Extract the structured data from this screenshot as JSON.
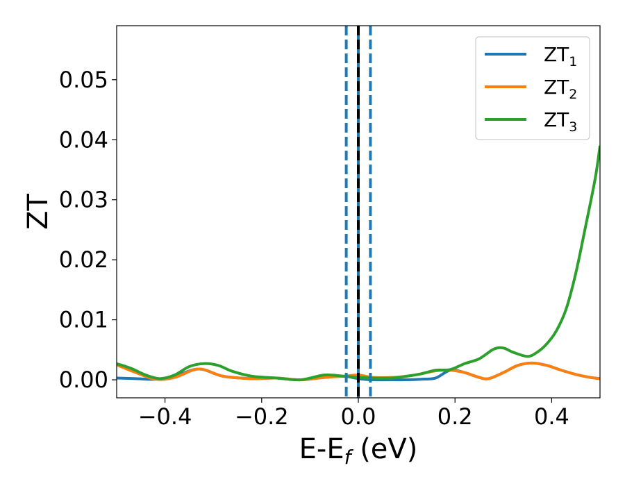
{
  "chart_data": {
    "type": "line",
    "xlabel": "E-E",
    "xlabel_sub": "f",
    "xlabel_unit": "(eV)",
    "ylabel": "ZT",
    "xlim": [
      -0.5,
      0.5
    ],
    "ylim": [
      -0.003,
      0.059
    ],
    "x_ticks": [
      -0.4,
      -0.2,
      0.0,
      0.2,
      0.4
    ],
    "x_tick_labels": [
      "−0.4",
      "−0.2",
      "0.0",
      "0.2",
      "0.4"
    ],
    "y_ticks": [
      0.0,
      0.01,
      0.02,
      0.03,
      0.04,
      0.05
    ],
    "y_tick_labels": [
      "0.00",
      "0.01",
      "0.02",
      "0.03",
      "0.04",
      "0.05"
    ],
    "grid": false,
    "legend_position": "top-right",
    "vlines": [
      {
        "x": -0.025,
        "style": "dashed",
        "color": "#1f77b4"
      },
      {
        "x": 0.025,
        "style": "dashed",
        "color": "#1f77b4"
      },
      {
        "x": 0.0,
        "style": "solid",
        "color": "#1f77b4"
      },
      {
        "x": 0.0,
        "style": "dashed",
        "color": "#000000"
      }
    ],
    "series": [
      {
        "name": "ZT",
        "name_sub": "1",
        "color": "#1f77b4",
        "x": [
          -0.5,
          -0.46,
          -0.42,
          -0.38,
          -0.33,
          -0.28,
          -0.22,
          -0.17,
          -0.12,
          -0.07,
          -0.03,
          0.0,
          0.03,
          0.07,
          0.1,
          0.13,
          0.16,
          0.19,
          0.22,
          0.25,
          0.27,
          0.3,
          0.33,
          0.36,
          0.39,
          0.42,
          0.45,
          0.48,
          0.5
        ],
        "y": [
          0.0003,
          0.0002,
          0.0001,
          0.0006,
          0.0018,
          0.0006,
          0.0002,
          0.0003,
          0.0,
          0.0004,
          0.0006,
          0.0002,
          0.0,
          0.0,
          0.0,
          0.0001,
          0.0003,
          0.0016,
          0.0012,
          0.0004,
          0.0002,
          0.0012,
          0.0024,
          0.0028,
          0.0024,
          0.0016,
          0.0009,
          0.0004,
          0.0002
        ]
      },
      {
        "name": "ZT",
        "name_sub": "2",
        "color": "#ff7f0e",
        "x": [
          -0.5,
          -0.46,
          -0.42,
          -0.38,
          -0.33,
          -0.28,
          -0.22,
          -0.17,
          -0.12,
          -0.07,
          -0.03,
          0.0,
          0.03,
          0.07,
          0.1,
          0.13,
          0.16,
          0.19,
          0.22,
          0.25,
          0.27,
          0.3,
          0.33,
          0.36,
          0.39,
          0.42,
          0.45,
          0.48,
          0.5
        ],
        "y": [
          0.0025,
          0.0012,
          0.0001,
          0.0004,
          0.0018,
          0.0006,
          0.0002,
          0.0003,
          0.0,
          0.0004,
          0.0006,
          0.0008,
          0.0004,
          0.0004,
          0.0006,
          0.001,
          0.0015,
          0.0016,
          0.0012,
          0.0004,
          0.0002,
          0.0012,
          0.0024,
          0.0028,
          0.0024,
          0.0016,
          0.0009,
          0.0004,
          0.0002
        ]
      },
      {
        "name": "ZT",
        "name_sub": "3",
        "color": "#2ca02c",
        "x": [
          -0.5,
          -0.47,
          -0.44,
          -0.41,
          -0.38,
          -0.35,
          -0.32,
          -0.29,
          -0.26,
          -0.22,
          -0.17,
          -0.12,
          -0.07,
          -0.03,
          0.0,
          0.03,
          0.07,
          0.1,
          0.13,
          0.16,
          0.19,
          0.22,
          0.25,
          0.28,
          0.3,
          0.32,
          0.35,
          0.37,
          0.39,
          0.41,
          0.43,
          0.45,
          0.47,
          0.49,
          0.5
        ],
        "y": [
          0.0027,
          0.0019,
          0.0008,
          0.0002,
          0.0008,
          0.0022,
          0.0027,
          0.0024,
          0.0014,
          0.0006,
          0.0003,
          0.0,
          0.0008,
          0.0006,
          0.0004,
          0.0003,
          0.0003,
          0.0006,
          0.001,
          0.0016,
          0.0017,
          0.0027,
          0.0035,
          0.0051,
          0.0053,
          0.0046,
          0.0039,
          0.0046,
          0.006,
          0.0082,
          0.0118,
          0.0178,
          0.0255,
          0.0335,
          0.039
        ]
      }
    ]
  }
}
